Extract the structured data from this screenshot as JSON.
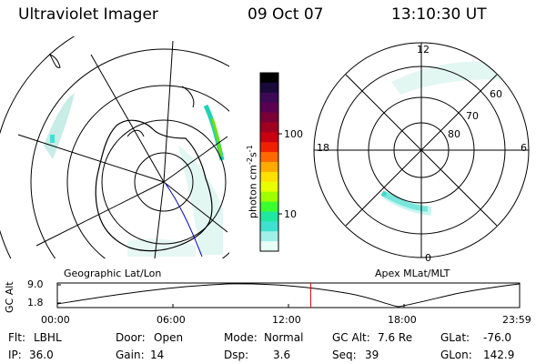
{
  "header": {
    "instrument": "Ultraviolet Imager",
    "date": "09 Oct 07",
    "time": "13:10:30 UT"
  },
  "left_panel": {
    "caption": "Geographic Lat/Lon"
  },
  "right_panel": {
    "caption": "Apex MLat/MLT",
    "mlt_labels": [
      "12",
      "18",
      "6",
      "0"
    ],
    "mlat_labels": [
      "60",
      "70",
      "80"
    ]
  },
  "colorbar": {
    "unit_label": "photon cm",
    "exp1": "-2",
    "unit_mid": "s",
    "exp2": "-1",
    "ticks": [
      "100",
      "10"
    ],
    "colors": [
      "#000000",
      "#1a0a3a",
      "#3c0a55",
      "#5a0050",
      "#7a0035",
      "#a00020",
      "#c80010",
      "#ee2200",
      "#ff6a00",
      "#ffaa00",
      "#ffe000",
      "#e8ff00",
      "#9eff00",
      "#3cff30",
      "#20e8a0",
      "#40e0d0",
      "#a0f0e8",
      "#e8fff8"
    ]
  },
  "timeline": {
    "axis_label": "GC Alt",
    "y_ticks": [
      "9.0",
      "1.8"
    ],
    "x_ticks": [
      "00:00",
      "06:00",
      "12:00",
      "18:00",
      "23:59"
    ],
    "current_time_fraction": 0.548
  },
  "info": {
    "row1": [
      {
        "key": "Flt:",
        "value": "LBHL"
      },
      {
        "key": "Door:",
        "value": "Open"
      },
      {
        "key": "Mode:",
        "value": "Normal"
      },
      {
        "key": "GC Alt:",
        "value": "7.6 Re"
      },
      {
        "key": "GLat:",
        "value": "-76.0"
      }
    ],
    "row2": [
      {
        "key": "IP:",
        "value": "36.0"
      },
      {
        "key": "Gain:",
        "value": "14"
      },
      {
        "key": "Dsp:",
        "value": "3.6"
      },
      {
        "key": "Seq:",
        "value": "39"
      },
      {
        "key": "GLon:",
        "value": "142.9"
      }
    ]
  }
}
